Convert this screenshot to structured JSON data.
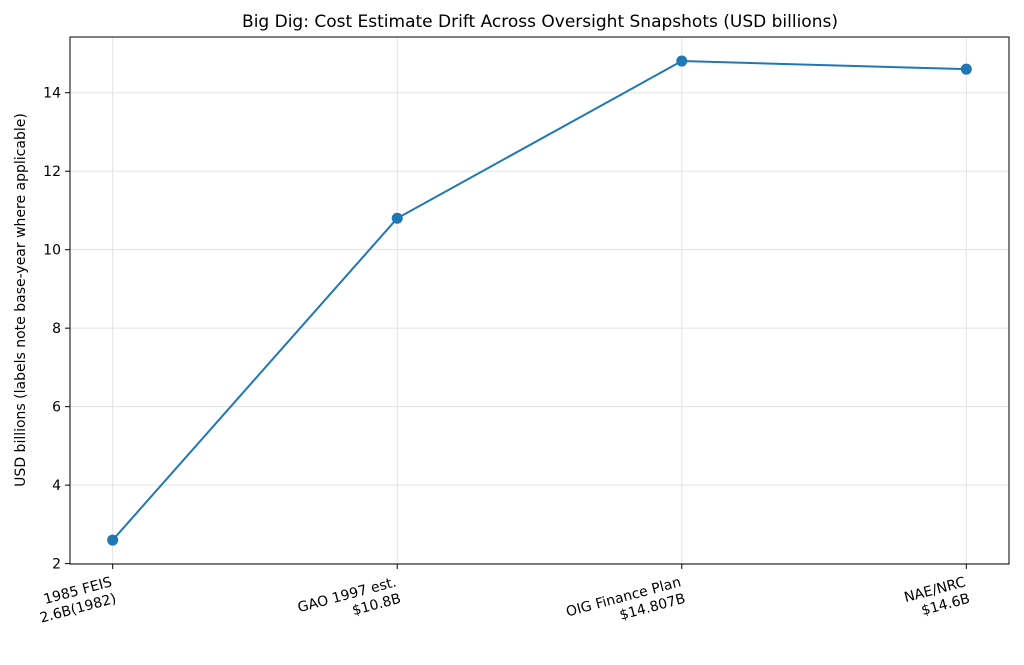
{
  "chart_data": {
    "type": "line",
    "title": "Big Dig: Cost Estimate Drift Across Oversight Snapshots (USD billions)",
    "xlabel": "",
    "ylabel": "USD billions (labels note base-year where applicable)",
    "categories": [
      [
        "1985 FEIS",
        "2.6B(1982)"
      ],
      [
        "GAO 1997 est.",
        "$10.8B"
      ],
      [
        "OIG Finance Plan",
        "$14.807B"
      ],
      [
        "NAE/NRC",
        "$14.6B"
      ]
    ],
    "values": [
      2.6,
      10.8,
      14.807,
      14.6
    ],
    "ylim": [
      1.99,
      15.42
    ],
    "yticks": [
      2,
      4,
      6,
      8,
      10,
      12,
      14
    ],
    "grid": true,
    "color": "#1f77b4",
    "marker": "circle"
  }
}
